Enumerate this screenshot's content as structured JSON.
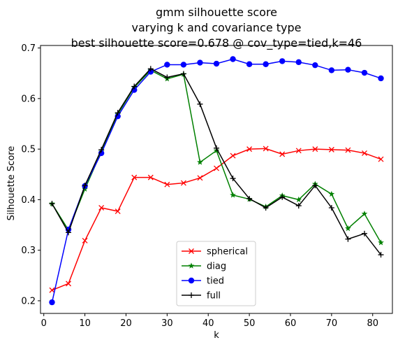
{
  "chart_data": {
    "type": "line",
    "title": [
      "gmm silhouette score",
      "varying k and covariance type",
      "best silhouette score=0.678 @ cov_type=tied,k=46"
    ],
    "xlabel": "k",
    "ylabel": "Silhouette Score",
    "xlim": [
      -0.8,
      84.8
    ],
    "ylim": [
      0.175,
      0.705
    ],
    "xticks": [
      0,
      10,
      20,
      30,
      40,
      50,
      60,
      70,
      80
    ],
    "yticks": [
      0.2,
      0.3,
      0.4,
      0.5,
      0.6,
      0.7
    ],
    "x": [
      2,
      6,
      10,
      14,
      18,
      22,
      26,
      30,
      34,
      38,
      42,
      46,
      50,
      54,
      58,
      62,
      66,
      70,
      74,
      78,
      82
    ],
    "legend_position": "lower-center",
    "series": [
      {
        "name": "spherical",
        "color": "#ff0000",
        "marker": "x",
        "values": [
          0.221,
          0.234,
          0.319,
          0.384,
          0.377,
          0.444,
          0.444,
          0.43,
          0.433,
          0.443,
          0.462,
          0.487,
          0.5,
          0.501,
          0.49,
          0.497,
          0.5,
          0.499,
          0.498,
          0.492,
          0.48
        ]
      },
      {
        "name": "diag",
        "color": "#008000",
        "marker": "star",
        "values": [
          0.392,
          0.34,
          0.421,
          0.495,
          0.569,
          0.622,
          0.656,
          0.639,
          0.648,
          0.474,
          0.497,
          0.409,
          0.401,
          0.386,
          0.408,
          0.4,
          0.431,
          0.411,
          0.343,
          0.372,
          0.315
        ]
      },
      {
        "name": "tied",
        "color": "#0000ff",
        "marker": "circle",
        "values": [
          0.197,
          0.341,
          0.427,
          0.492,
          0.565,
          0.617,
          0.653,
          0.667,
          0.667,
          0.671,
          0.669,
          0.678,
          0.668,
          0.668,
          0.674,
          0.672,
          0.666,
          0.656,
          0.657,
          0.651,
          0.64
        ]
      },
      {
        "name": "full",
        "color": "#000000",
        "marker": "plus",
        "values": [
          0.392,
          0.335,
          0.428,
          0.499,
          0.572,
          0.624,
          0.659,
          0.642,
          0.649,
          0.589,
          0.502,
          0.442,
          0.402,
          0.384,
          0.405,
          0.388,
          0.428,
          0.384,
          0.322,
          0.333,
          0.291
        ]
      }
    ]
  }
}
